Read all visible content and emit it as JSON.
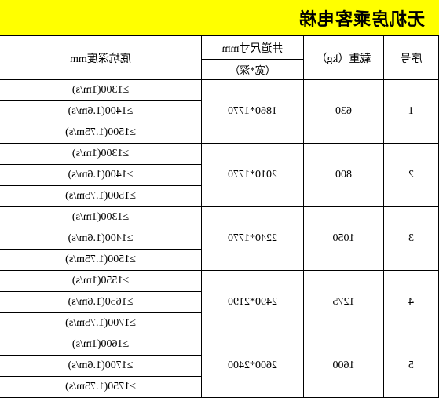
{
  "title": "无机房乘客电梯",
  "headers": {
    "seq": "序号",
    "load": "载重（kg）",
    "shaft_top": "井道尺寸mm",
    "shaft_sub": "（宽*深）",
    "pit": "底坑深度mm"
  },
  "rows": [
    {
      "seq": "1",
      "load": "630",
      "shaft": "1860*1770",
      "pits": [
        "≥1300(1m/s)",
        "≥1400(1.6m/s)",
        "≥1500(1.75m/s)"
      ]
    },
    {
      "seq": "2",
      "load": "800",
      "shaft": "2010*1770",
      "pits": [
        "≥1300(1m/s)",
        "≥1400(1.6m/s)",
        "≥1500(1.75m/s)"
      ]
    },
    {
      "seq": "3",
      "load": "1050",
      "shaft": "2240*1770",
      "pits": [
        "≥1300(1m/s)",
        "≥1400(1.6m/s)",
        "≥1500(1.75m/s)"
      ]
    },
    {
      "seq": "4",
      "load": "1275",
      "shaft": "2490*2190",
      "pits": [
        "≥1550(1m/s)",
        "≥1650(1.6m/s)",
        "≥1700(1.75m/s)"
      ]
    },
    {
      "seq": "5",
      "load": "1600",
      "shaft": "2600*2400",
      "pits": [
        "≥1600(1m/s)",
        "≥1700(1.6m/s)",
        "≥1750(1.75m/s)"
      ]
    }
  ],
  "styling": {
    "title_bg": "#ffff00",
    "border_color": "#000000",
    "bg_color": "#ffffff",
    "font_family": "SimSun",
    "mirrored": true
  }
}
